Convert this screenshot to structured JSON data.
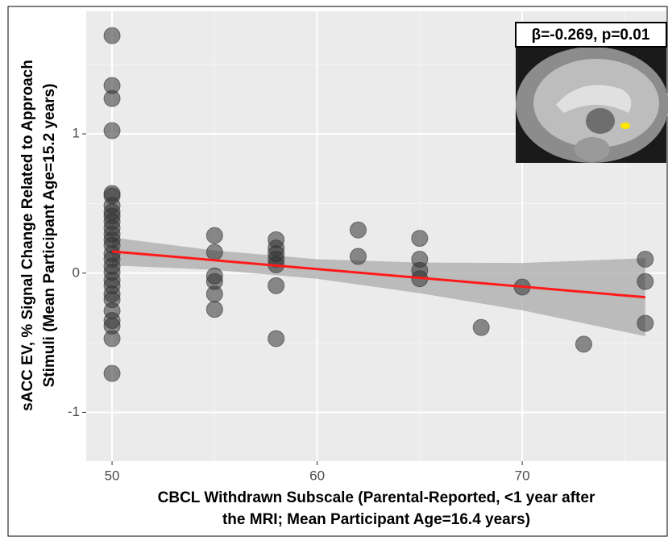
{
  "chart_data": {
    "type": "scatter",
    "x_label": [
      "CBCL Withdrawn Subscale (Parental-Reported, <1 year after",
      "the MRI; Mean Participant Age=16.4 years)"
    ],
    "y_label": [
      "sACC EV, % Signal Change Related to Approach",
      "Stimuli (Mean Participant Age=15.2 years)"
    ],
    "annotation": "β=-0.269, p=0.01",
    "x": [
      50,
      50,
      50,
      50,
      50,
      50,
      50,
      50,
      50,
      50,
      50,
      50,
      50,
      50,
      50,
      50,
      50,
      50,
      50,
      50,
      50,
      50,
      50,
      50,
      50,
      50,
      50,
      55,
      55,
      55,
      55,
      55,
      55,
      58,
      58,
      58,
      58,
      58,
      58,
      58,
      62,
      62,
      65,
      65,
      65,
      65,
      68,
      70,
      73,
      76,
      76,
      76
    ],
    "y": [
      1.705,
      1.347,
      1.254,
      1.023,
      0.572,
      0.555,
      0.486,
      0.44,
      0.41,
      0.37,
      0.324,
      0.28,
      0.24,
      0.2,
      0.14,
      0.1,
      0.05,
      0.006,
      -0.05,
      -0.09,
      -0.15,
      -0.19,
      -0.27,
      -0.34,
      -0.38,
      -0.47,
      -0.72,
      0.27,
      0.15,
      -0.02,
      -0.06,
      -0.15,
      -0.26,
      0.24,
      0.18,
      0.14,
      0.1,
      0.06,
      -0.09,
      -0.47,
      0.31,
      0.12,
      0.25,
      0.1,
      0.02,
      -0.04,
      -0.39,
      -0.1,
      -0.51,
      0.1,
      -0.06,
      -0.36
    ],
    "color": "#333333",
    "fit": {
      "x": [
        50,
        76
      ],
      "y": [
        0.156,
        -0.173
      ],
      "color": "#ff1a1a"
    },
    "band": {
      "x": [
        50,
        55,
        60,
        65,
        70,
        76
      ],
      "upper": [
        0.256,
        0.163,
        0.1,
        0.076,
        0.073,
        0.107
      ],
      "lower": [
        0.056,
        0.023,
        -0.04,
        -0.144,
        -0.267,
        -0.453
      ],
      "color": "#b3b3b3"
    },
    "xlim": [
      48.74,
      77.03
    ],
    "ylim": [
      -1.35,
      1.88
    ],
    "xticks": [
      50,
      60,
      70
    ],
    "yticks": [
      -1,
      0,
      1
    ],
    "minor_xticks": [
      55,
      65,
      75
    ],
    "minor_yticks": [
      -0.5,
      0.5,
      1.5
    ],
    "grid": true
  }
}
